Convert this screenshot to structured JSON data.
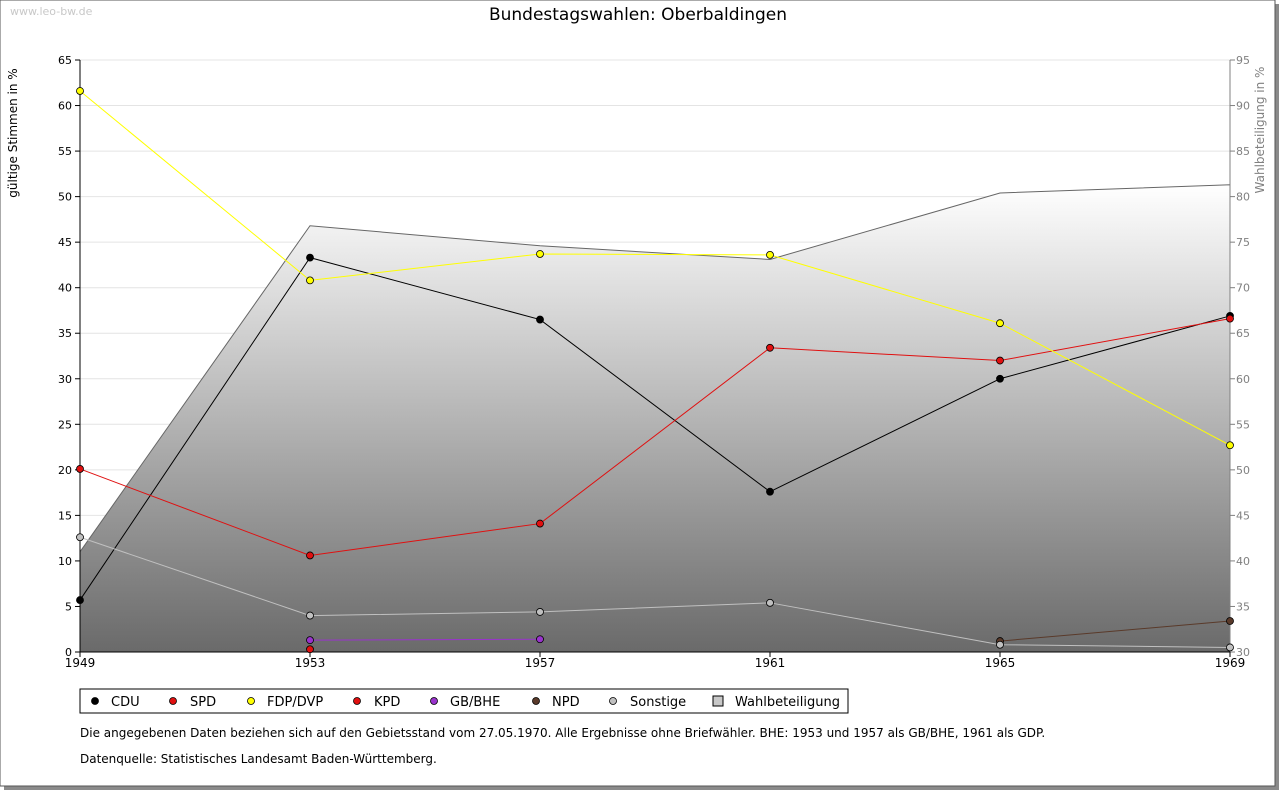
{
  "watermark": "www.leo-bw.de",
  "chart_data": {
    "type": "line",
    "title": "Bundestagswahlen: Oberbaldingen",
    "ylabel": "gültige Stimmen in %",
    "y2label": "Wahlbeteiligung in %",
    "x": [
      "1949",
      "1953",
      "1957",
      "1961",
      "1965",
      "1969"
    ],
    "ylim": [
      0,
      65
    ],
    "y2lim": [
      30,
      95
    ],
    "yticks": [
      0,
      5,
      10,
      15,
      20,
      25,
      30,
      35,
      40,
      45,
      50,
      55,
      60,
      65
    ],
    "y2ticks": [
      30,
      35,
      40,
      45,
      50,
      55,
      60,
      65,
      70,
      75,
      80,
      85,
      90,
      95
    ],
    "series": [
      {
        "name": "CDU",
        "color": "#000000",
        "values": [
          5.7,
          43.3,
          36.5,
          17.6,
          30.0,
          36.9
        ]
      },
      {
        "name": "SPD",
        "color": "#e01010",
        "values": [
          20.1,
          10.6,
          14.1,
          33.4,
          32.0,
          36.6
        ]
      },
      {
        "name": "FDP/DVP",
        "color": "#ffff00",
        "values": [
          61.6,
          40.8,
          43.7,
          43.6,
          36.1,
          22.7
        ]
      },
      {
        "name": "KPD",
        "color": "#e01010",
        "values": [
          null,
          0.3,
          null,
          null,
          null,
          null
        ]
      },
      {
        "name": "GB/BHE",
        "color": "#9933cc",
        "values": [
          null,
          1.3,
          1.4,
          null,
          null,
          null
        ]
      },
      {
        "name": "NPD",
        "color": "#5a3a2a",
        "values": [
          null,
          null,
          null,
          null,
          1.2,
          3.4
        ]
      },
      {
        "name": "Sonstige",
        "color": "#c0c0c0",
        "values": [
          12.6,
          4.0,
          4.4,
          5.4,
          0.8,
          0.5
        ]
      }
    ],
    "turnout": {
      "name": "Wahlbeteiligung",
      "values": [
        41.0,
        76.8,
        74.6,
        73.1,
        80.4,
        81.3
      ]
    },
    "legend_position": "bottom-left"
  },
  "notes": {
    "line1": "Die angegebenen Daten beziehen sich auf den Gebietsstand vom 27.05.1970. Alle Ergebnisse ohne Briefwähler. BHE: 1953 und 1957 als GB/BHE, 1961 als GDP.",
    "line2": "Datenquelle: Statistisches Landesamt Baden-Württemberg."
  }
}
